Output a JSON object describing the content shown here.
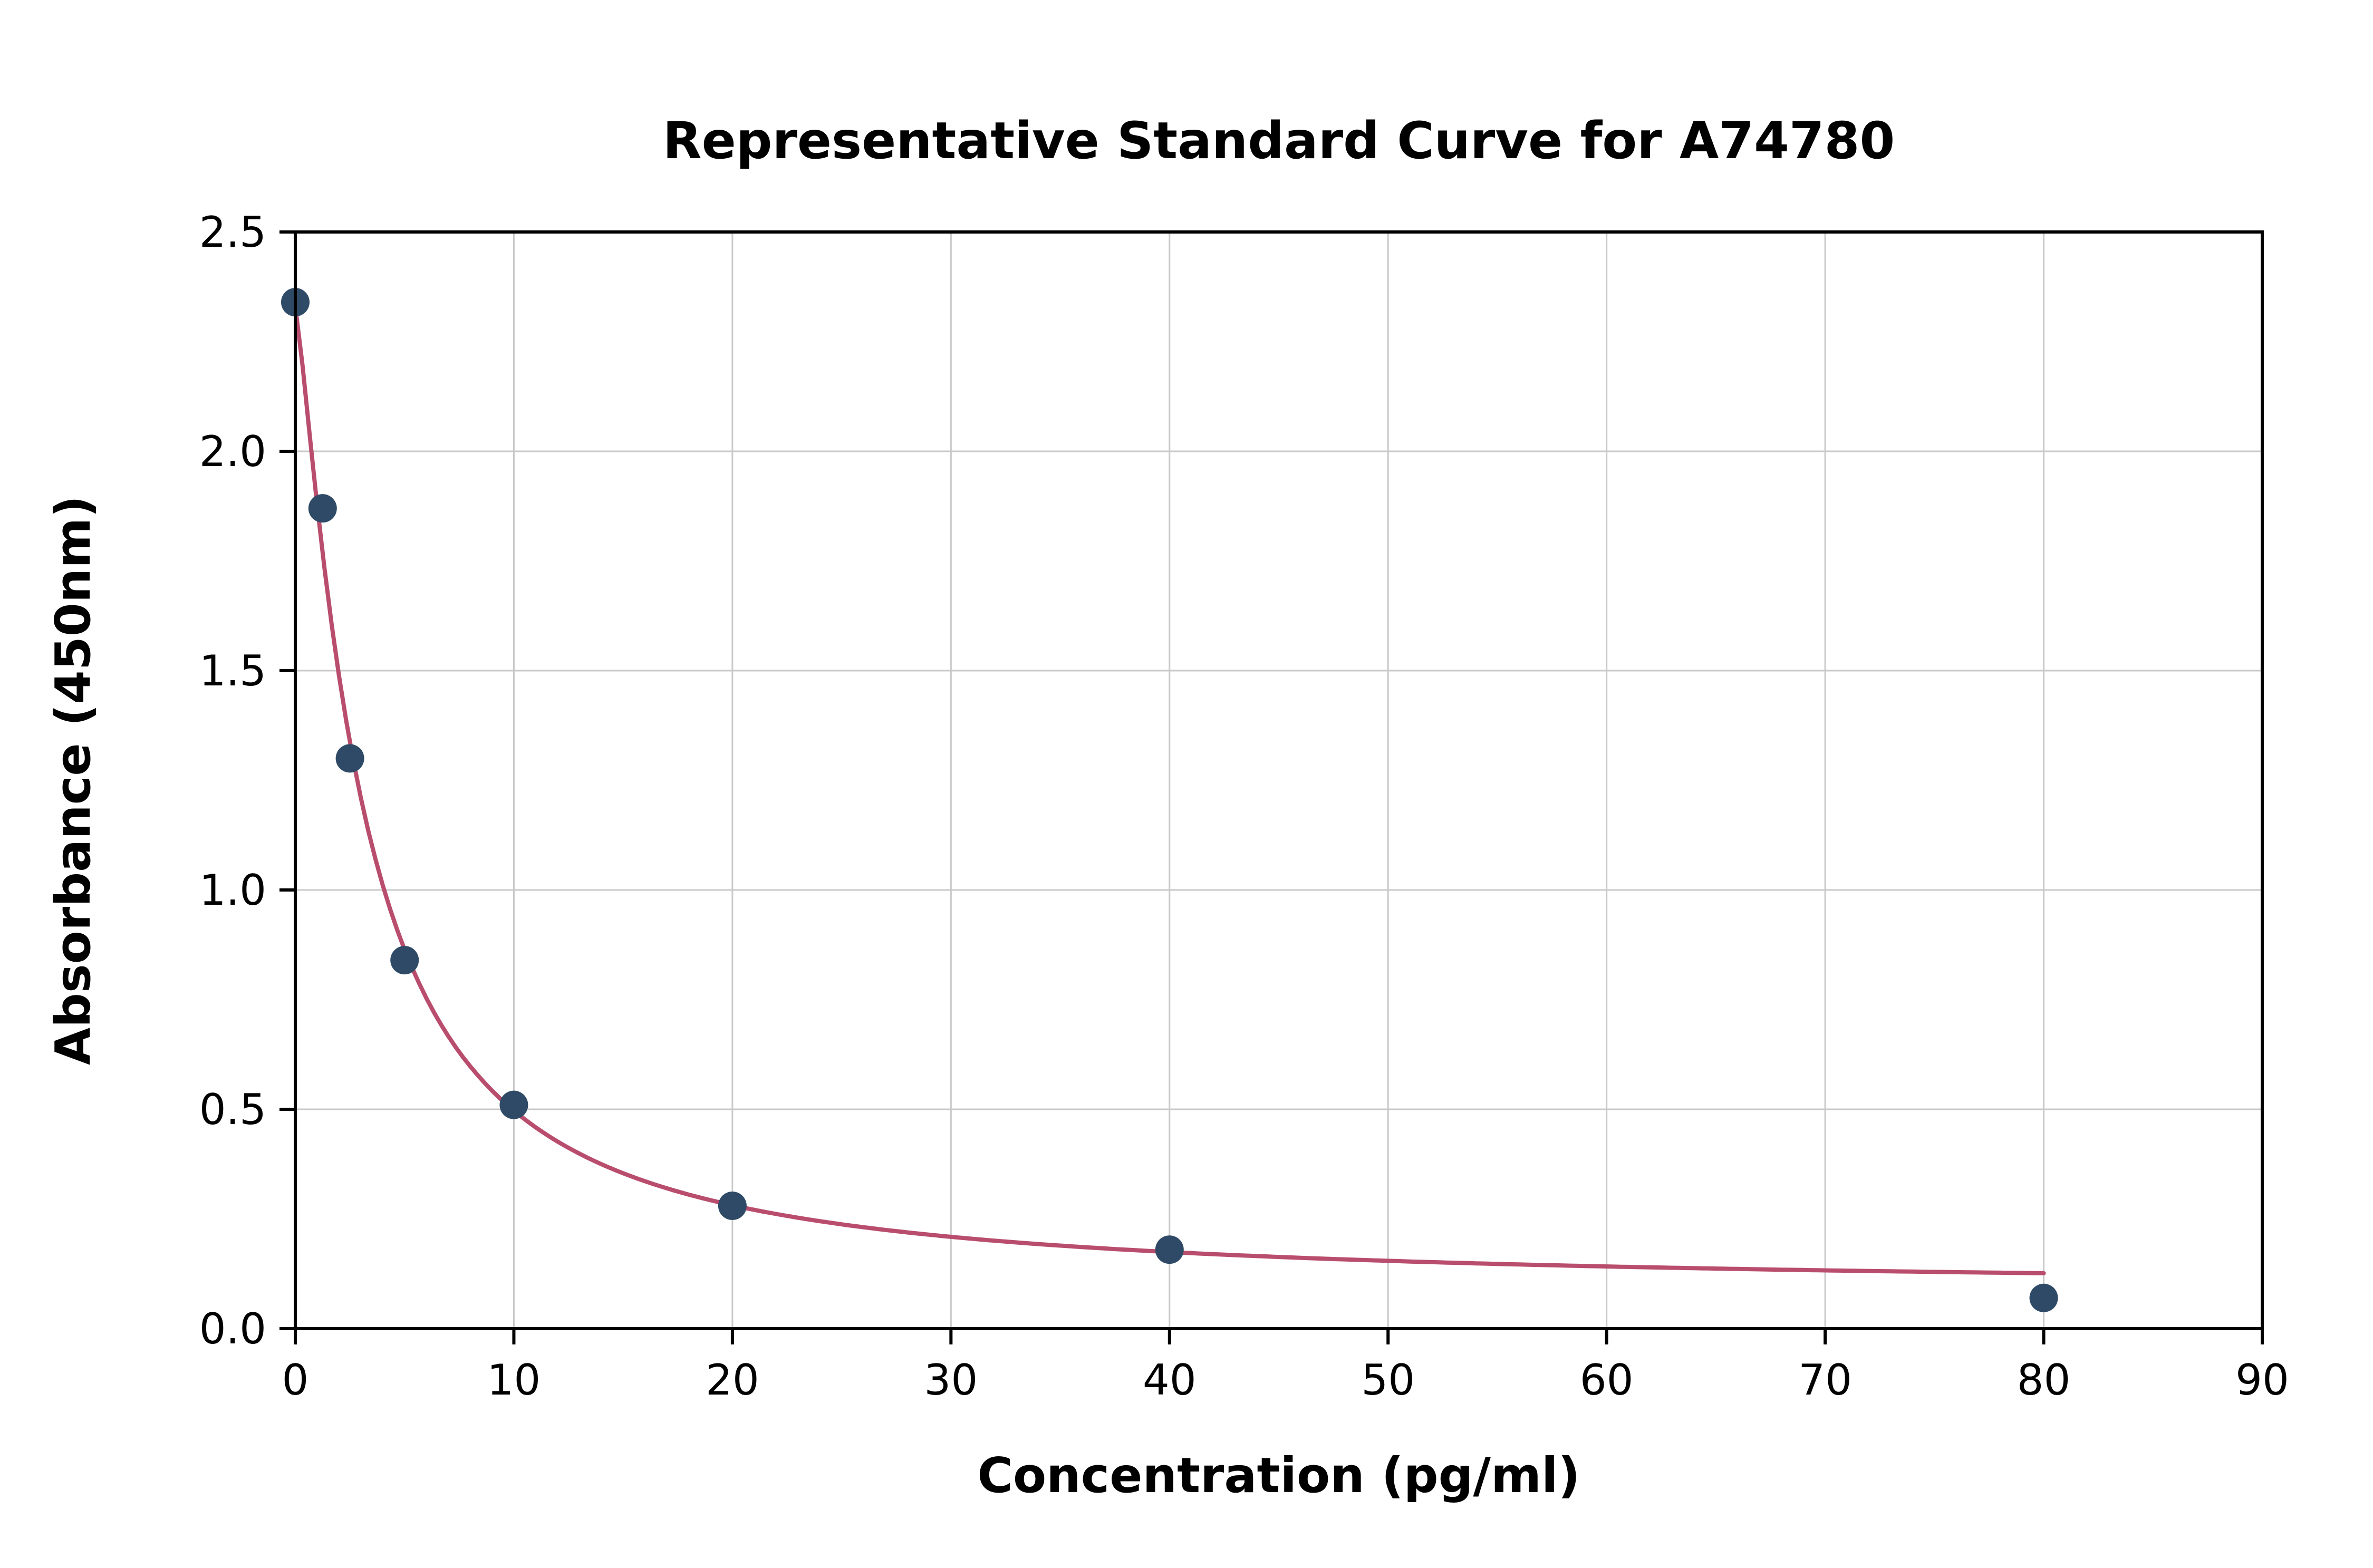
{
  "page": {
    "background": "#ffffff"
  },
  "chart_data": {
    "type": "scatter",
    "title": "Representative Standard Curve for A74780",
    "xlabel": "Concentration (pg/ml)",
    "ylabel": "Absorbance (450nm)",
    "xlim": [
      0,
      90
    ],
    "ylim": [
      0.0,
      2.5
    ],
    "xticks": [
      0,
      10,
      20,
      30,
      40,
      50,
      60,
      70,
      80,
      90
    ],
    "yticks": [
      0.0,
      0.5,
      1.0,
      1.5,
      2.0,
      2.5
    ],
    "grid": true,
    "legend": "none",
    "points": {
      "x": [
        0,
        1.25,
        2.5,
        5,
        10,
        20,
        40,
        80
      ],
      "y": [
        2.34,
        1.87,
        1.3,
        0.84,
        0.51,
        0.28,
        0.18,
        0.07
      ]
    },
    "fit_curve": {
      "type": "4pl",
      "a": 2.33,
      "b": 1.25,
      "c": 3.0,
      "d": 0.09,
      "x_range": [
        0,
        80
      ]
    },
    "colors": {
      "points": "#2e4a66",
      "curve": "#b94d6d",
      "grid": "#c9c9c9",
      "axis": "#000000",
      "text": "#000000"
    }
  }
}
